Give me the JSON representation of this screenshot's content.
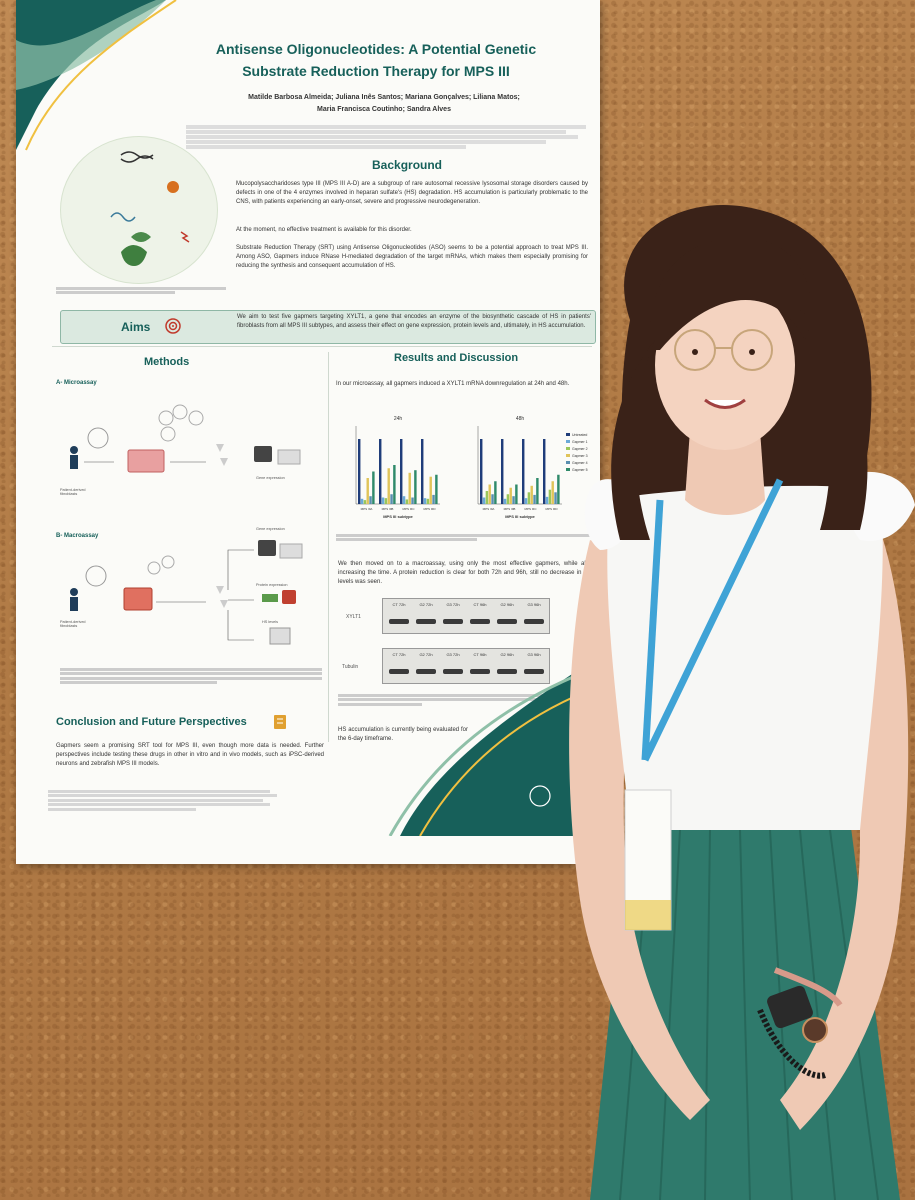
{
  "poster": {
    "title_line1": "Antisense Oligonucleotides: A Potential Genetic",
    "title_line2": "Substrate Reduction Therapy for MPS III",
    "authors_line1": "Matilde Barbosa Almeida; Juliana Inês Santos; Mariana Gonçalves; Liliana Matos;",
    "authors_line2": "Maria Francisca Coutinho; Sandra Alves",
    "background": {
      "heading": "Background",
      "p1": "Mucopolysaccharidoses type III (MPS III A-D) are a subgroup of rare autosomal recessive lysosomal storage disorders caused by defects in one of the 4 enzymes involved in heparan sulfate's (HS) degradation. HS accumulation is particularly problematic to the CNS, with patients experiencing an early-onset, severe and progressive neurodegeneration.",
      "p2": "At the moment, no effective treatment is available for this disorder.",
      "p3": "Substrate Reduction Therapy (SRT) using Antisense Oligonucleotides (ASO) seems to be a potential approach to treat MPS III. Among ASO, Gapmers induce RNase H-mediated degradation of the target mRNAs, which makes them especially promising for reducing the synthesis and consequent accumulation of HS."
    },
    "aims": {
      "heading": "Aims",
      "text": "We aim to test five gapmers targeting XYLT1, a gene that encodes an enzyme of the biosynthetic cascade of HS in patients' fibroblasts from all MPS III subtypes, and assess their effect on gene expression, protein levels and, ultimately, in HS accumulation."
    },
    "methods": {
      "heading": "Methods",
      "micro_label": "A- Microassay",
      "macro_label": "B- Macroassay",
      "gene_expression": "Gene expression",
      "protein_expression": "Protein expression",
      "hs_levels": "HS levels",
      "patient_fibroblasts": "Patient-derived fibroblasts"
    },
    "results": {
      "heading": "Results and Discussion",
      "p1": "In our microassay, all gapmers induced a XYLT1 mRNA downregulation at 24h and 48h.",
      "p2": "We then moved on to a macroassay, using only the most effective gapmers, while also increasing the time. A protein reduction is clear for both 72h and 96h, still no decrease in HS levels was seen.",
      "p3": "HS accumulation is currently being evaluated for the 6-day timeframe.",
      "blot_labels_a": [
        "CT 72h",
        "G2 72h",
        "G3 72h",
        "CT 96h",
        "G2 96h",
        "G3 96h"
      ],
      "blot_labels_b": [
        "CT 72h",
        "G2 72h",
        "G3 72h",
        "CT 96h",
        "G2 96h",
        "G3 96h"
      ],
      "xylt1": "XYLT1",
      "tubulin": "Tubulin"
    },
    "conclusion": {
      "heading": "Conclusion and Future Perspectives",
      "text": "Gapmers seem a promising SRT tool for MPS III, even though more data is needed. Further perspectives include testing these drugs in other in vitro and in vivo models, such as iPSC-derived neurons and zebrafish MPS III models."
    }
  },
  "chart_data": [
    {
      "type": "bar",
      "title": "24h",
      "xlabel": "MPS III subtype",
      "categories": [
        "MPS IIIA",
        "MPS IIIB",
        "MPS IIIC",
        "MPS IIID"
      ],
      "series": [
        {
          "name": "Untreated",
          "values": [
            100,
            100,
            100,
            100
          ]
        },
        {
          "name": "Gapmer 1",
          "values": [
            8,
            10,
            12,
            9
          ]
        },
        {
          "name": "Gapmer 2",
          "values": [
            6,
            9,
            7,
            8
          ]
        },
        {
          "name": "Gapmer 3",
          "values": [
            40,
            55,
            48,
            42
          ]
        },
        {
          "name": "Gapmer 4",
          "values": [
            12,
            15,
            10,
            14
          ]
        },
        {
          "name": "Gapmer 5",
          "values": [
            50,
            60,
            52,
            45
          ]
        }
      ],
      "ylim": [
        0,
        120
      ]
    },
    {
      "type": "bar",
      "title": "48h",
      "xlabel": "MPS III subtype",
      "categories": [
        "MPS IIIA",
        "MPS IIIB",
        "MPS IIIC",
        "MPS IIID"
      ],
      "series": [
        {
          "name": "Untreated",
          "values": [
            100,
            100,
            100,
            100
          ]
        },
        {
          "name": "Gapmer 1",
          "values": [
            10,
            8,
            9,
            11
          ]
        },
        {
          "name": "Gapmer 2",
          "values": [
            20,
            15,
            18,
            22
          ]
        },
        {
          "name": "Gapmer 3",
          "values": [
            30,
            25,
            28,
            35
          ]
        },
        {
          "name": "Gapmer 4",
          "values": [
            15,
            12,
            14,
            18
          ]
        },
        {
          "name": "Gapmer 5",
          "values": [
            35,
            30,
            40,
            45
          ]
        }
      ],
      "ylim": [
        0,
        120
      ]
    }
  ],
  "colors": {
    "untreated": "#1f3d7a",
    "gapmer1": "#6aa9d8",
    "gapmer2": "#9ac65a",
    "gapmer3": "#e0c45a",
    "gapmer4": "#5a8fb0",
    "gapmer5": "#2f8a6a"
  }
}
